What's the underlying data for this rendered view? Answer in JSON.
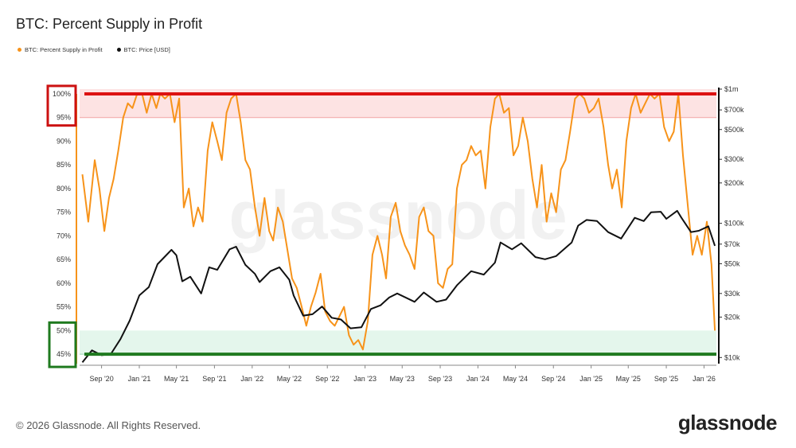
{
  "title": "BTC: Percent Supply in Profit",
  "legend": [
    {
      "label": "BTC: Percent Supply in Profit",
      "color": "#f7931a"
    },
    {
      "label": "BTC: Price [USD]",
      "color": "#111111"
    }
  ],
  "footer": {
    "copyright": "© 2026 Glassnode. All Rights Reserved.",
    "logo": "glassnode"
  },
  "watermark": "glassnode",
  "colors": {
    "profit_line": "#f7931a",
    "price_line": "#111111",
    "top_band": "#fde3e3",
    "top_line": "#dd1111",
    "bottom_band": "#e4f6ec",
    "bottom_line": "#1f7a1f",
    "box_top": "#cc1111",
    "box_bottom": "#1f7a1f"
  },
  "chart_data": {
    "type": "line",
    "title": "BTC: Percent Supply in Profit",
    "x_ticks": [
      "Sep '20",
      "Jan '21",
      "May '21",
      "Sep '21",
      "Jan '22",
      "May '22",
      "Sep '22",
      "Jan '23",
      "May '23",
      "Sep '23",
      "Jan '24",
      "May '24",
      "Sep '24",
      "Jan '25",
      "May '25",
      "Sep '25",
      "Jan '26"
    ],
    "y_left": {
      "ticks": [
        "45%",
        "50%",
        "55%",
        "60%",
        "65%",
        "70%",
        "75%",
        "80%",
        "85%",
        "90%",
        "95%",
        "100%"
      ],
      "range": [
        43,
        101
      ],
      "unit": "%"
    },
    "y_right": {
      "ticks": [
        "$10k",
        "$20k",
        "$30k",
        "$50k",
        "$70k",
        "$100k",
        "$200k",
        "$300k",
        "$500k",
        "$700k",
        "$1m"
      ],
      "scale": "log",
      "range": [
        9000,
        1000000
      ],
      "unit": "USD"
    },
    "bands": [
      {
        "axis": "left",
        "from": 95,
        "to": 101,
        "color": "#fde3e3"
      },
      {
        "axis": "left",
        "from": 45,
        "to": 50,
        "color": "#e4f6ec"
      }
    ],
    "reference_lines": [
      {
        "axis": "left",
        "value": 100,
        "color": "#dd1111"
      },
      {
        "axis": "left",
        "value": 45,
        "color": "#1f7a1f"
      }
    ],
    "series": [
      {
        "name": "BTC: Percent Supply in Profit",
        "axis": "left",
        "color": "#f7931a",
        "points": [
          [
            "2020-07-01",
            83
          ],
          [
            "2020-07-20",
            73
          ],
          [
            "2020-08-10",
            86
          ],
          [
            "2020-08-25",
            80
          ],
          [
            "2020-09-10",
            71
          ],
          [
            "2020-09-25",
            78
          ],
          [
            "2020-10-10",
            82
          ],
          [
            "2020-10-25",
            88
          ],
          [
            "2020-11-10",
            95
          ],
          [
            "2020-11-25",
            98
          ],
          [
            "2020-12-10",
            97
          ],
          [
            "2020-12-25",
            100
          ],
          [
            "2021-01-10",
            100
          ],
          [
            "2021-01-25",
            96
          ],
          [
            "2021-02-10",
            100
          ],
          [
            "2021-02-25",
            97
          ],
          [
            "2021-03-10",
            100
          ],
          [
            "2021-03-25",
            99
          ],
          [
            "2021-04-10",
            100
          ],
          [
            "2021-04-25",
            94
          ],
          [
            "2021-05-10",
            99
          ],
          [
            "2021-05-25",
            76
          ],
          [
            "2021-06-10",
            80
          ],
          [
            "2021-06-25",
            72
          ],
          [
            "2021-07-10",
            76
          ],
          [
            "2021-07-25",
            73
          ],
          [
            "2021-08-10",
            88
          ],
          [
            "2021-08-25",
            94
          ],
          [
            "2021-09-10",
            90
          ],
          [
            "2021-09-25",
            86
          ],
          [
            "2021-10-10",
            96
          ],
          [
            "2021-10-25",
            99
          ],
          [
            "2021-11-10",
            100
          ],
          [
            "2021-11-25",
            94
          ],
          [
            "2021-12-10",
            86
          ],
          [
            "2021-12-25",
            84
          ],
          [
            "2022-01-10",
            76
          ],
          [
            "2022-01-25",
            70
          ],
          [
            "2022-02-10",
            78
          ],
          [
            "2022-02-25",
            71
          ],
          [
            "2022-03-10",
            69
          ],
          [
            "2022-03-25",
            76
          ],
          [
            "2022-04-10",
            73
          ],
          [
            "2022-04-25",
            67
          ],
          [
            "2022-05-10",
            61
          ],
          [
            "2022-05-25",
            59
          ],
          [
            "2022-06-10",
            55
          ],
          [
            "2022-06-25",
            51
          ],
          [
            "2022-07-10",
            55
          ],
          [
            "2022-07-25",
            58
          ],
          [
            "2022-08-10",
            62
          ],
          [
            "2022-08-25",
            54
          ],
          [
            "2022-09-10",
            52
          ],
          [
            "2022-09-25",
            51
          ],
          [
            "2022-10-10",
            53
          ],
          [
            "2022-10-25",
            55
          ],
          [
            "2022-11-10",
            49
          ],
          [
            "2022-11-25",
            47
          ],
          [
            "2022-12-10",
            48
          ],
          [
            "2022-12-25",
            46
          ],
          [
            "2023-01-10",
            52
          ],
          [
            "2023-01-25",
            66
          ],
          [
            "2023-02-10",
            70
          ],
          [
            "2023-02-25",
            66
          ],
          [
            "2023-03-10",
            61
          ],
          [
            "2023-03-25",
            74
          ],
          [
            "2023-04-10",
            77
          ],
          [
            "2023-04-25",
            71
          ],
          [
            "2023-05-10",
            68
          ],
          [
            "2023-05-25",
            66
          ],
          [
            "2023-06-10",
            63
          ],
          [
            "2023-06-25",
            74
          ],
          [
            "2023-07-10",
            76
          ],
          [
            "2023-07-25",
            71
          ],
          [
            "2023-08-10",
            70
          ],
          [
            "2023-08-25",
            60
          ],
          [
            "2023-09-10",
            59
          ],
          [
            "2023-09-25",
            63
          ],
          [
            "2023-10-10",
            64
          ],
          [
            "2023-10-25",
            80
          ],
          [
            "2023-11-10",
            85
          ],
          [
            "2023-11-25",
            86
          ],
          [
            "2023-12-10",
            89
          ],
          [
            "2023-12-25",
            87
          ],
          [
            "2024-01-10",
            88
          ],
          [
            "2024-01-25",
            80
          ],
          [
            "2024-02-10",
            93
          ],
          [
            "2024-02-25",
            99
          ],
          [
            "2024-03-10",
            100
          ],
          [
            "2024-03-25",
            96
          ],
          [
            "2024-04-10",
            97
          ],
          [
            "2024-04-25",
            87
          ],
          [
            "2024-05-10",
            89
          ],
          [
            "2024-05-25",
            95
          ],
          [
            "2024-06-10",
            90
          ],
          [
            "2024-06-25",
            82
          ],
          [
            "2024-07-10",
            76
          ],
          [
            "2024-07-25",
            85
          ],
          [
            "2024-08-10",
            73
          ],
          [
            "2024-08-25",
            79
          ],
          [
            "2024-09-10",
            75
          ],
          [
            "2024-09-25",
            84
          ],
          [
            "2024-10-10",
            86
          ],
          [
            "2024-10-25",
            92
          ],
          [
            "2024-11-10",
            99
          ],
          [
            "2024-11-25",
            100
          ],
          [
            "2024-12-10",
            99
          ],
          [
            "2024-12-25",
            96
          ],
          [
            "2025-01-10",
            97
          ],
          [
            "2025-01-25",
            99
          ],
          [
            "2025-02-10",
            93
          ],
          [
            "2025-02-25",
            85
          ],
          [
            "2025-03-10",
            80
          ],
          [
            "2025-03-25",
            84
          ],
          [
            "2025-04-10",
            76
          ],
          [
            "2025-04-25",
            90
          ],
          [
            "2025-05-10",
            97
          ],
          [
            "2025-05-25",
            100
          ],
          [
            "2025-06-10",
            96
          ],
          [
            "2025-06-25",
            98
          ],
          [
            "2025-07-10",
            100
          ],
          [
            "2025-07-25",
            99
          ],
          [
            "2025-08-10",
            100
          ],
          [
            "2025-08-25",
            93
          ],
          [
            "2025-09-10",
            90
          ],
          [
            "2025-09-25",
            92
          ],
          [
            "2025-10-10",
            100
          ],
          [
            "2025-10-25",
            87
          ],
          [
            "2025-11-10",
            76
          ],
          [
            "2025-11-25",
            66
          ],
          [
            "2025-12-10",
            70
          ],
          [
            "2025-12-25",
            66
          ],
          [
            "2026-01-10",
            73
          ],
          [
            "2026-01-25",
            64
          ],
          [
            "2026-02-05",
            50
          ]
        ]
      },
      {
        "name": "BTC: Price [USD]",
        "axis": "right",
        "color": "#111111",
        "points": [
          [
            "2020-07-01",
            9200
          ],
          [
            "2020-08-01",
            11300
          ],
          [
            "2020-09-01",
            10400
          ],
          [
            "2020-10-01",
            10600
          ],
          [
            "2020-11-01",
            13700
          ],
          [
            "2020-12-01",
            18800
          ],
          [
            "2021-01-01",
            29000
          ],
          [
            "2021-02-01",
            33500
          ],
          [
            "2021-03-01",
            49600
          ],
          [
            "2021-04-01",
            58800
          ],
          [
            "2021-04-15",
            63500
          ],
          [
            "2021-05-01",
            57800
          ],
          [
            "2021-05-20",
            37000
          ],
          [
            "2021-06-15",
            40000
          ],
          [
            "2021-07-20",
            30000
          ],
          [
            "2021-08-15",
            47000
          ],
          [
            "2021-09-10",
            45000
          ],
          [
            "2021-10-20",
            64000
          ],
          [
            "2021-11-10",
            67000
          ],
          [
            "2021-12-10",
            49000
          ],
          [
            "2022-01-10",
            42000
          ],
          [
            "2022-01-25",
            36500
          ],
          [
            "2022-03-01",
            44000
          ],
          [
            "2022-03-30",
            47000
          ],
          [
            "2022-05-01",
            38000
          ],
          [
            "2022-05-15",
            29000
          ],
          [
            "2022-06-15",
            20500
          ],
          [
            "2022-07-15",
            21000
          ],
          [
            "2022-08-15",
            24000
          ],
          [
            "2022-09-15",
            19800
          ],
          [
            "2022-10-15",
            19200
          ],
          [
            "2022-11-15",
            16500
          ],
          [
            "2022-12-20",
            16800
          ],
          [
            "2023-01-20",
            23000
          ],
          [
            "2023-02-20",
            24500
          ],
          [
            "2023-03-20",
            28000
          ],
          [
            "2023-04-15",
            30000
          ],
          [
            "2023-06-10",
            26000
          ],
          [
            "2023-07-10",
            30500
          ],
          [
            "2023-08-20",
            26000
          ],
          [
            "2023-09-20",
            27000
          ],
          [
            "2023-10-25",
            34500
          ],
          [
            "2023-12-10",
            44000
          ],
          [
            "2024-01-20",
            41500
          ],
          [
            "2024-02-25",
            51000
          ],
          [
            "2024-03-14",
            72000
          ],
          [
            "2024-04-20",
            64000
          ],
          [
            "2024-05-20",
            71000
          ],
          [
            "2024-07-05",
            56000
          ],
          [
            "2024-08-05",
            54000
          ],
          [
            "2024-09-10",
            57000
          ],
          [
            "2024-10-30",
            72000
          ],
          [
            "2024-11-20",
            96000
          ],
          [
            "2024-12-17",
            106000
          ],
          [
            "2025-01-20",
            104000
          ],
          [
            "2025-02-25",
            86000
          ],
          [
            "2025-04-08",
            77000
          ],
          [
            "2025-05-22",
            110000
          ],
          [
            "2025-06-20",
            104000
          ],
          [
            "2025-07-14",
            121000
          ],
          [
            "2025-08-14",
            122000
          ],
          [
            "2025-09-01",
            108000
          ],
          [
            "2025-10-06",
            124000
          ],
          [
            "2025-10-20",
            110000
          ],
          [
            "2025-11-20",
            86000
          ],
          [
            "2025-12-15",
            88000
          ],
          [
            "2026-01-15",
            95000
          ],
          [
            "2026-02-05",
            68000
          ]
        ]
      }
    ]
  }
}
